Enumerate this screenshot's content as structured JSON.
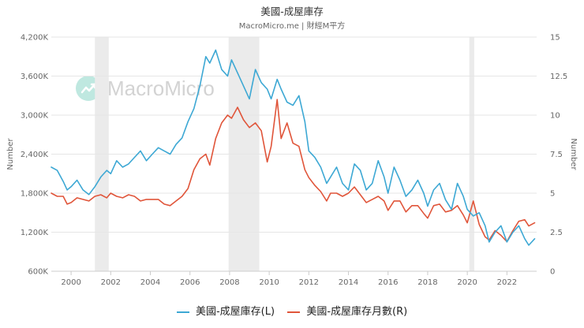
{
  "header": {
    "title": "美國-成屋庫存",
    "subtitle": "MacroMicro.me | 財經M平方"
  },
  "watermark": {
    "text": "MacroMicro",
    "icon": "macromicro-logo-icon"
  },
  "legend": [
    {
      "label": "美國-成屋庫存(L)",
      "color": "#3da8d4"
    },
    {
      "label": "美國-成屋庫存月數(R)",
      "color": "#e0553a"
    }
  ],
  "chart_data": {
    "type": "line",
    "title": "美國-成屋庫存",
    "xlabel": "",
    "ylabel_left": "Number",
    "ylabel_right": "Number",
    "xlim": [
      1999.0,
      2023.5
    ],
    "ylim_left": [
      600,
      4200
    ],
    "ylim_right": [
      0,
      15
    ],
    "x_ticks": [
      "2000",
      "2002",
      "2004",
      "2006",
      "2008",
      "2010",
      "2012",
      "2014",
      "2016",
      "2018",
      "2020",
      "2022"
    ],
    "y_ticks_left": [
      "600K",
      "1,200K",
      "1,800K",
      "2,400K",
      "3,000K",
      "3,600K",
      "4,200K"
    ],
    "y_ticks_right": [
      "0",
      "2.5",
      "5",
      "7.5",
      "10",
      "12.5",
      "15"
    ],
    "grid": true,
    "legend_position": "bottom",
    "recessions": [
      [
        2001.2,
        2001.9
      ],
      [
        2007.95,
        2009.5
      ],
      [
        2020.1,
        2020.35
      ]
    ],
    "series": [
      {
        "name": "美國-成屋庫存(L)",
        "axis": "left",
        "color": "#3da8d4",
        "x": [
          1999.0,
          1999.3,
          1999.6,
          1999.8,
          2000.0,
          2000.3,
          2000.6,
          2000.9,
          2001.2,
          2001.5,
          2001.8,
          2002.0,
          2002.3,
          2002.6,
          2002.9,
          2003.2,
          2003.5,
          2003.8,
          2004.1,
          2004.4,
          2004.7,
          2005.0,
          2005.3,
          2005.6,
          2005.9,
          2006.2,
          2006.5,
          2006.8,
          2007.0,
          2007.3,
          2007.6,
          2007.9,
          2008.1,
          2008.4,
          2008.7,
          2009.0,
          2009.3,
          2009.6,
          2009.9,
          2010.1,
          2010.4,
          2010.6,
          2010.9,
          2011.2,
          2011.5,
          2011.8,
          2012.0,
          2012.3,
          2012.6,
          2012.9,
          2013.1,
          2013.4,
          2013.7,
          2014.0,
          2014.3,
          2014.6,
          2014.9,
          2015.2,
          2015.5,
          2015.8,
          2016.0,
          2016.3,
          2016.6,
          2016.9,
          2017.2,
          2017.5,
          2017.8,
          2018.0,
          2018.3,
          2018.6,
          2018.9,
          2019.2,
          2019.5,
          2019.8,
          2020.0,
          2020.3,
          2020.6,
          2020.9,
          2021.1,
          2021.4,
          2021.7,
          2022.0,
          2022.3,
          2022.6,
          2022.9,
          2023.1,
          2023.4
        ],
        "y": [
          2200,
          2150,
          1980,
          1850,
          1900,
          2000,
          1850,
          1780,
          1900,
          2050,
          2150,
          2100,
          2300,
          2200,
          2250,
          2350,
          2450,
          2300,
          2400,
          2500,
          2450,
          2400,
          2550,
          2650,
          2900,
          3100,
          3450,
          3900,
          3800,
          4000,
          3700,
          3600,
          3850,
          3650,
          3450,
          3250,
          3700,
          3500,
          3400,
          3250,
          3550,
          3400,
          3200,
          3150,
          3300,
          2900,
          2450,
          2350,
          2200,
          1950,
          2050,
          2200,
          1950,
          1850,
          2250,
          2150,
          1850,
          1950,
          2300,
          2050,
          1800,
          2200,
          2000,
          1750,
          1850,
          2000,
          1800,
          1600,
          1850,
          1950,
          1700,
          1550,
          1950,
          1750,
          1550,
          1450,
          1500,
          1300,
          1050,
          1200,
          1300,
          1050,
          1200,
          1300,
          1100,
          1000,
          1100
        ]
      },
      {
        "name": "美國-成屋庫存月數(R)",
        "axis": "right",
        "color": "#e0553a",
        "x": [
          1999.0,
          1999.3,
          1999.6,
          1999.8,
          2000.0,
          2000.3,
          2000.6,
          2000.9,
          2001.2,
          2001.5,
          2001.8,
          2002.0,
          2002.3,
          2002.6,
          2002.9,
          2003.2,
          2003.5,
          2003.8,
          2004.1,
          2004.4,
          2004.7,
          2005.0,
          2005.3,
          2005.6,
          2005.9,
          2006.2,
          2006.5,
          2006.8,
          2007.0,
          2007.3,
          2007.6,
          2007.9,
          2008.1,
          2008.4,
          2008.7,
          2009.0,
          2009.3,
          2009.6,
          2009.9,
          2010.1,
          2010.4,
          2010.6,
          2010.9,
          2011.2,
          2011.5,
          2011.8,
          2012.0,
          2012.3,
          2012.6,
          2012.9,
          2013.1,
          2013.4,
          2013.7,
          2014.0,
          2014.3,
          2014.6,
          2014.9,
          2015.2,
          2015.5,
          2015.8,
          2016.0,
          2016.3,
          2016.6,
          2016.9,
          2017.2,
          2017.5,
          2017.8,
          2018.0,
          2018.3,
          2018.6,
          2018.9,
          2019.2,
          2019.5,
          2019.8,
          2020.0,
          2020.3,
          2020.6,
          2020.9,
          2021.1,
          2021.4,
          2021.7,
          2022.0,
          2022.3,
          2022.6,
          2022.9,
          2023.1,
          2023.4
        ],
        "y": [
          5.0,
          4.8,
          4.8,
          4.3,
          4.4,
          4.7,
          4.6,
          4.5,
          4.8,
          4.9,
          4.7,
          5.0,
          4.8,
          4.7,
          4.9,
          4.8,
          4.5,
          4.6,
          4.6,
          4.6,
          4.3,
          4.2,
          4.5,
          4.8,
          5.3,
          6.5,
          7.2,
          7.5,
          6.8,
          8.5,
          9.5,
          10.0,
          9.8,
          10.5,
          9.7,
          9.2,
          9.5,
          9.0,
          7.0,
          8.0,
          11.0,
          8.5,
          9.5,
          8.2,
          8.0,
          6.5,
          6.0,
          5.5,
          5.1,
          4.5,
          5.0,
          5.0,
          4.8,
          5.0,
          5.4,
          4.9,
          4.4,
          4.6,
          4.8,
          4.5,
          3.9,
          4.5,
          4.5,
          3.8,
          4.2,
          4.2,
          3.7,
          3.4,
          4.2,
          4.3,
          3.8,
          3.9,
          4.2,
          3.6,
          3.1,
          4.5,
          3.0,
          2.2,
          2.0,
          2.6,
          2.3,
          1.9,
          2.6,
          3.2,
          3.3,
          2.9,
          3.1
        ]
      }
    ]
  }
}
